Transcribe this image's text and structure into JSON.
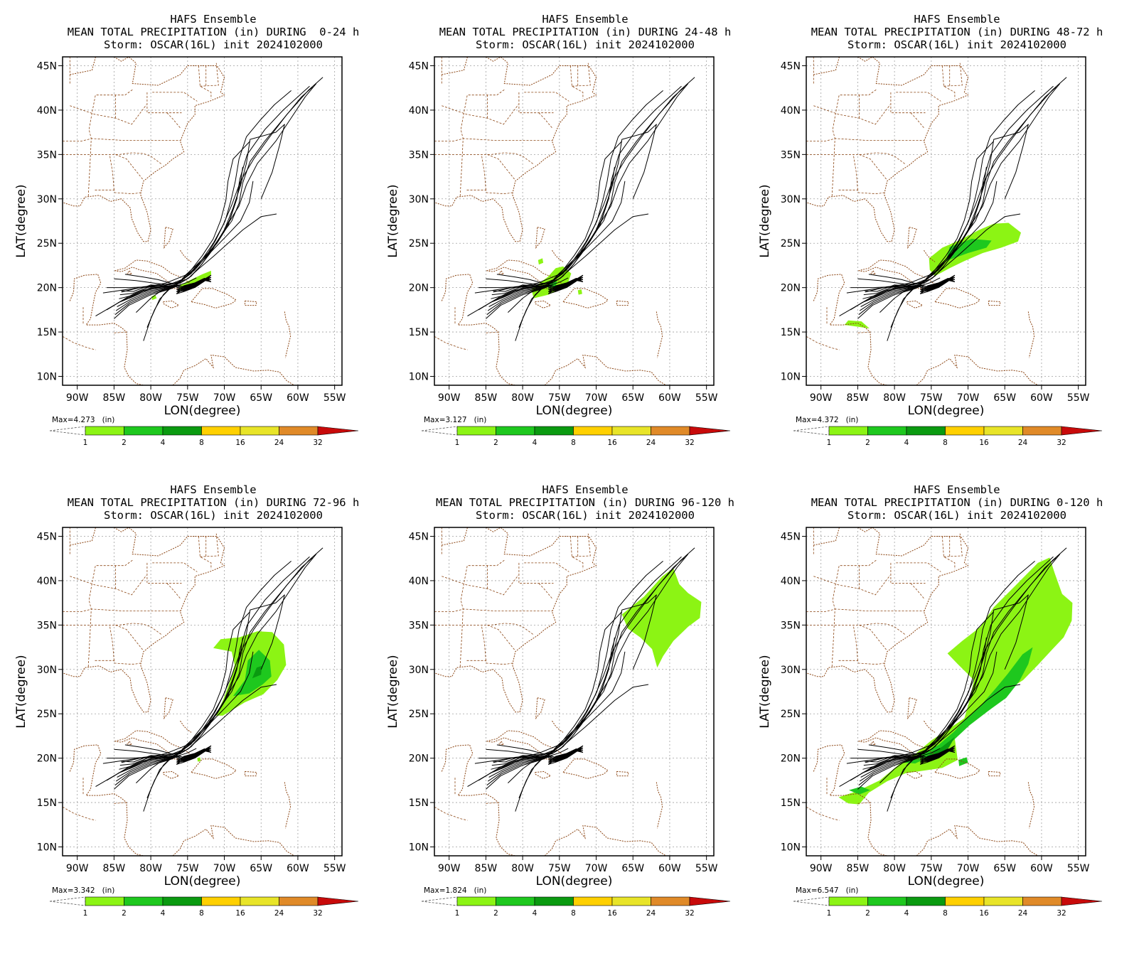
{
  "legend": {
    "units": "(in)",
    "levels": [
      "1",
      "2",
      "4",
      "8",
      "16",
      "24",
      "32"
    ],
    "colors": [
      "#8cf414",
      "#1ec81e",
      "#0a9a10",
      "#ffd000",
      "#e8e428",
      "#e08a28",
      "#c80a0a"
    ]
  },
  "colors": {
    "coast": "#8b4513",
    "grid": "#a0a0a0",
    "track": "#000000",
    "rain_light": "#8cf414",
    "rain_mid": "#1ec81e",
    "rain_dark": "#0a9a10"
  },
  "axes": {
    "xlabel": "LON(degree)",
    "ylabel": "LAT(degree)",
    "xticks": [
      "90W",
      "85W",
      "80W",
      "75W",
      "70W",
      "65W",
      "60W",
      "55W"
    ],
    "yticks": [
      "45N",
      "40N",
      "35N",
      "30N",
      "25N",
      "20N",
      "15N",
      "10N"
    ]
  },
  "panels": [
    {
      "line1": "HAFS Ensemble",
      "line2": "MEAN TOTAL PRECIPITATION (in) DURING  0-24 h",
      "line3": "Storm: OSCAR(16L) init 2024102000",
      "max_label": "Max=4.273",
      "window": "0-24",
      "rain": "p1"
    },
    {
      "line1": "HAFS Ensemble",
      "line2": "MEAN TOTAL PRECIPITATION (in) DURING 24-48 h",
      "line3": "Storm: OSCAR(16L) init 2024102000",
      "max_label": "Max=3.127",
      "window": "24-48",
      "rain": "p2"
    },
    {
      "line1": "HAFS Ensemble",
      "line2": "MEAN TOTAL PRECIPITATION (in) DURING 48-72 h",
      "line3": "Storm: OSCAR(16L) init 2024102000",
      "max_label": "Max=4.372",
      "window": "48-72",
      "rain": "p3"
    },
    {
      "line1": "HAFS Ensemble",
      "line2": "MEAN TOTAL PRECIPITATION (in) DURING 72-96 h",
      "line3": "Storm: OSCAR(16L) init 2024102000",
      "max_label": "Max=3.342",
      "window": "72-96",
      "rain": "p4"
    },
    {
      "line1": "HAFS Ensemble",
      "line2": "MEAN TOTAL PRECIPITATION (in) DURING 96-120 h",
      "line3": "Storm: OSCAR(16L) init 2024102000",
      "max_label": "Max=1.824",
      "window": "96-120",
      "rain": "p5"
    },
    {
      "line1": "HAFS Ensemble",
      "line2": "MEAN TOTAL PRECIPITATION (in) DURING 0-120 h",
      "line3": "Storm: OSCAR(16L) init 2024102000",
      "max_label": "Max=6.547",
      "window": "0-120",
      "rain": "p6"
    }
  ]
}
